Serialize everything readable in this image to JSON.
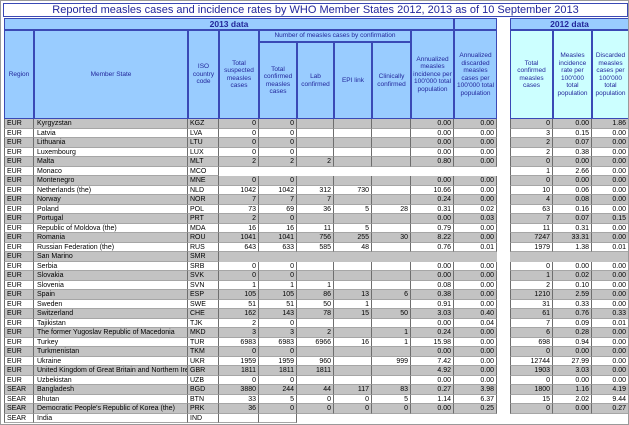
{
  "title": "Reported measles cases and incidence rates by WHO Member States 2012, 2013 as of 10 September 2013",
  "bands": {
    "y2013": "2013 data",
    "y2012": "2012 data"
  },
  "headers": {
    "region": "Region",
    "member": "Member State",
    "iso": "ISO country code",
    "suspected": "Total suspected measles cases",
    "confirmation_group": "Number of measles cases by confirmation",
    "confirmed": "Total confirmed measles cases",
    "lab": "Lab confirmed",
    "epi": "EPI link",
    "clinical": "Clinically confirmed",
    "incidence": "Annualized measles incidence per 100'000 total population",
    "discarded": "Annualized discarded measles cases per 100'000 total population",
    "confirmed_2012": "Total confirmed measles cases",
    "incidence_2012": "Measles incidence rate per 100'000 total population",
    "discarded_2012": "Discarded measles cases per 100'000 total population"
  },
  "colors": {
    "bline": "#3a49b5",
    "hblue": "#99ccff",
    "hcyan": "#ccffff",
    "navy": "#23279b",
    "gray": "#c3c3c3",
    "grid": "#6e6e6e"
  },
  "rows": [
    {
      "r": "EUR",
      "m": "Kyrgyzstan",
      "i": "KGZ",
      "s": "0",
      "c": "0",
      "l": "",
      "e": "",
      "cl": "",
      "inc": "0.00",
      "dis": "0.00",
      "c12": "0",
      "i12": "0.00",
      "d12": "1.86"
    },
    {
      "r": "EUR",
      "m": "Latvia",
      "i": "LVA",
      "s": "0",
      "c": "0",
      "l": "",
      "e": "",
      "cl": "",
      "inc": "0.00",
      "dis": "0.00",
      "c12": "3",
      "i12": "0.15",
      "d12": "0.00"
    },
    {
      "r": "EUR",
      "m": "Lithuania",
      "i": "LTU",
      "s": "0",
      "c": "0",
      "l": "",
      "e": "",
      "cl": "",
      "inc": "0.00",
      "dis": "0.00",
      "c12": "2",
      "i12": "0.07",
      "d12": "0.00"
    },
    {
      "r": "EUR",
      "m": "Luxembourg",
      "i": "LUX",
      "s": "0",
      "c": "0",
      "l": "",
      "e": "",
      "cl": "",
      "inc": "0.00",
      "dis": "0.00",
      "c12": "2",
      "i12": "0.38",
      "d12": "0.00"
    },
    {
      "r": "EUR",
      "m": "Malta",
      "i": "MLT",
      "s": "2",
      "c": "2",
      "l": "2",
      "e": "",
      "cl": "",
      "inc": "0.80",
      "dis": "0.00",
      "c12": "0",
      "i12": "0.00",
      "d12": "0.00"
    },
    {
      "r": "EUR",
      "m": "Monaco",
      "i": "MCO",
      "s": "",
      "c": "",
      "l": "",
      "e": "",
      "cl": "",
      "inc": "",
      "dis": "",
      "c12": "1",
      "i12": "2.66",
      "d12": "0.00",
      "b13": "none"
    },
    {
      "r": "EUR",
      "m": "Montenegro",
      "i": "MNE",
      "s": "0",
      "c": "0",
      "l": "",
      "e": "",
      "cl": "",
      "inc": "0.00",
      "dis": "0.00",
      "c12": "0",
      "i12": "0.00",
      "d12": "0.00"
    },
    {
      "r": "EUR",
      "m": "Netherlands (the)",
      "i": "NLD",
      "s": "1042",
      "c": "1042",
      "l": "312",
      "e": "730",
      "cl": "",
      "inc": "10.66",
      "dis": "0.00",
      "c12": "10",
      "i12": "0.06",
      "d12": "0.00"
    },
    {
      "r": "EUR",
      "m": "Norway",
      "i": "NOR",
      "s": "7",
      "c": "7",
      "l": "7",
      "e": "",
      "cl": "",
      "inc": "0.24",
      "dis": "0.00",
      "c12": "4",
      "i12": "0.08",
      "d12": "0.00"
    },
    {
      "r": "EUR",
      "m": "Poland",
      "i": "POL",
      "s": "73",
      "c": "69",
      "l": "36",
      "e": "5",
      "cl": "28",
      "inc": "0.31",
      "dis": "0.02",
      "c12": "63",
      "i12": "0.16",
      "d12": "0.00"
    },
    {
      "r": "EUR",
      "m": "Portugal",
      "i": "PRT",
      "s": "2",
      "c": "0",
      "l": "",
      "e": "",
      "cl": "",
      "inc": "0.00",
      "dis": "0.03",
      "c12": "7",
      "i12": "0.07",
      "d12": "0.15"
    },
    {
      "r": "EUR",
      "m": "Republic of Moldova (the)",
      "i": "MDA",
      "s": "16",
      "c": "16",
      "l": "11",
      "e": "5",
      "cl": "",
      "inc": "0.79",
      "dis": "0.00",
      "c12": "11",
      "i12": "0.31",
      "d12": "0.00"
    },
    {
      "r": "EUR",
      "m": "Romania",
      "i": "ROU",
      "s": "1041",
      "c": "1041",
      "l": "756",
      "e": "255",
      "cl": "30",
      "inc": "8.22",
      "dis": "0.00",
      "c12": "7247",
      "i12": "33.31",
      "d12": "0.00"
    },
    {
      "r": "EUR",
      "m": "Russian Federation (the)",
      "i": "RUS",
      "s": "643",
      "c": "633",
      "l": "585",
      "e": "48",
      "cl": "",
      "inc": "0.76",
      "dis": "0.01",
      "c12": "1979",
      "i12": "1.38",
      "d12": "0.01"
    },
    {
      "r": "EUR",
      "m": "San Marino",
      "i": "SMR",
      "s": "",
      "c": "",
      "l": "",
      "e": "",
      "cl": "",
      "inc": "",
      "dis": "",
      "c12": "",
      "i12": "",
      "d12": "",
      "b13": "none",
      "b12": "none"
    },
    {
      "r": "EUR",
      "m": "Serbia",
      "i": "SRB",
      "s": "0",
      "c": "0",
      "l": "",
      "e": "",
      "cl": "",
      "inc": "0.00",
      "dis": "0.00",
      "c12": "0",
      "i12": "0.00",
      "d12": "0.00"
    },
    {
      "r": "EUR",
      "m": "Slovakia",
      "i": "SVK",
      "s": "0",
      "c": "0",
      "l": "",
      "e": "",
      "cl": "",
      "inc": "0.00",
      "dis": "0.00",
      "c12": "1",
      "i12": "0.02",
      "d12": "0.00"
    },
    {
      "r": "EUR",
      "m": "Slovenia",
      "i": "SVN",
      "s": "1",
      "c": "1",
      "l": "1",
      "e": "",
      "cl": "",
      "inc": "0.08",
      "dis": "0.00",
      "c12": "2",
      "i12": "0.10",
      "d12": "0.00"
    },
    {
      "r": "EUR",
      "m": "Spain",
      "i": "ESP",
      "s": "105",
      "c": "105",
      "l": "86",
      "e": "13",
      "cl": "6",
      "inc": "0.38",
      "dis": "0.00",
      "c12": "1210",
      "i12": "2.59",
      "d12": "0.00"
    },
    {
      "r": "EUR",
      "m": "Sweden",
      "i": "SWE",
      "s": "51",
      "c": "51",
      "l": "50",
      "e": "1",
      "cl": "",
      "inc": "0.91",
      "dis": "0.00",
      "c12": "31",
      "i12": "0.33",
      "d12": "0.00"
    },
    {
      "r": "EUR",
      "m": "Switzerland",
      "i": "CHE",
      "s": "162",
      "c": "143",
      "l": "78",
      "e": "15",
      "cl": "50",
      "inc": "3.03",
      "dis": "0.40",
      "c12": "61",
      "i12": "0.76",
      "d12": "0.33"
    },
    {
      "r": "EUR",
      "m": "Tajikistan",
      "i": "TJK",
      "s": "2",
      "c": "0",
      "l": "",
      "e": "",
      "cl": "",
      "inc": "0.00",
      "dis": "0.04",
      "c12": "7",
      "i12": "0.09",
      "d12": "0.01"
    },
    {
      "r": "EUR",
      "m": "The former Yugoslav Republic of Macedonia",
      "i": "MKD",
      "s": "3",
      "c": "3",
      "l": "2",
      "e": "",
      "cl": "1",
      "inc": "0.24",
      "dis": "0.00",
      "c12": "6",
      "i12": "0.28",
      "d12": "0.00"
    },
    {
      "r": "EUR",
      "m": "Turkey",
      "i": "TUR",
      "s": "6983",
      "c": "6983",
      "l": "6966",
      "e": "16",
      "cl": "1",
      "inc": "15.98",
      "dis": "0.00",
      "c12": "698",
      "i12": "0.94",
      "d12": "0.00"
    },
    {
      "r": "EUR",
      "m": "Turkmenistan",
      "i": "TKM",
      "s": "0",
      "c": "0",
      "l": "",
      "e": "",
      "cl": "",
      "inc": "0.00",
      "dis": "0.00",
      "c12": "0",
      "i12": "0.00",
      "d12": "0.00"
    },
    {
      "r": "EUR",
      "m": "Ukraine",
      "i": "UKR",
      "s": "1959",
      "c": "1959",
      "l": "960",
      "e": "",
      "cl": "999",
      "inc": "7.42",
      "dis": "0.00",
      "c12": "12744",
      "i12": "27.99",
      "d12": "0.00"
    },
    {
      "r": "EUR",
      "m": "United Kingdom of Great Britain and Northern Ireland (the)",
      "i": "GBR",
      "s": "1811",
      "c": "1811",
      "l": "1811",
      "e": "",
      "cl": "",
      "inc": "4.92",
      "dis": "0.00",
      "c12": "1903",
      "i12": "3.03",
      "d12": "0.00"
    },
    {
      "r": "EUR",
      "m": "Uzbekistan",
      "i": "UZB",
      "s": "0",
      "c": "0",
      "l": "",
      "e": "",
      "cl": "",
      "inc": "0.00",
      "dis": "0.00",
      "c12": "0",
      "i12": "0.00",
      "d12": "0.00"
    },
    {
      "r": "SEAR",
      "m": "Bangladesh",
      "i": "BGD",
      "s": "3880",
      "c": "244",
      "l": "44",
      "e": "117",
      "cl": "83",
      "inc": "0.27",
      "dis": "3.98",
      "c12": "1800",
      "i12": "1.16",
      "d12": "4.19"
    },
    {
      "r": "SEAR",
      "m": "Bhutan",
      "i": "BTN",
      "s": "33",
      "c": "5",
      "l": "0",
      "e": "0",
      "cl": "5",
      "inc": "1.14",
      "dis": "6.37",
      "c12": "15",
      "i12": "2.02",
      "d12": "9.44"
    },
    {
      "r": "SEAR",
      "m": "Democratic People's Republic of Korea (the)",
      "i": "PRK",
      "s": "36",
      "c": "0",
      "l": "0",
      "e": "0",
      "cl": "0",
      "inc": "0.00",
      "dis": "0.25",
      "c12": "0",
      "i12": "0.00",
      "d12": "0.27"
    },
    {
      "r": "SEAR",
      "m": "India",
      "i": "IND",
      "s": "",
      "c": "",
      "l": "",
      "e": "",
      "cl": "",
      "inc": "",
      "dis": "",
      "c12": "",
      "i12": "",
      "d12": "",
      "b13": "first2",
      "b12": "none"
    }
  ]
}
